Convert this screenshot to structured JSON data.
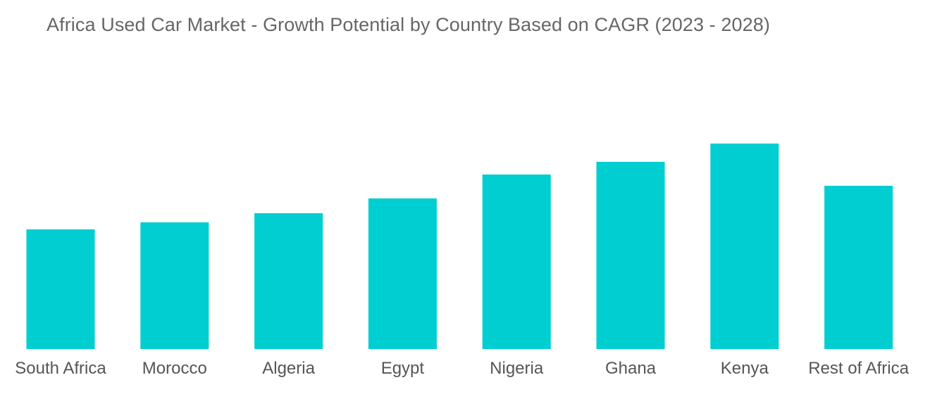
{
  "chart_data": {
    "type": "bar",
    "title": "Africa Used Car Market - Growth Potential by Country Based on CAGR (2023 - 2028)",
    "categories": [
      "South Africa",
      "Morocco",
      "Algeria",
      "Egypt",
      "Nigeria",
      "Ghana",
      "Kenya",
      "Rest of Africa"
    ],
    "values": [
      170,
      180,
      193,
      214,
      248,
      266,
      292,
      232
    ],
    "xlabel": "",
    "ylabel": "",
    "ylim": [
      0,
      300
    ],
    "grid": false,
    "legend": "none",
    "bar_color": "#00CED1"
  }
}
